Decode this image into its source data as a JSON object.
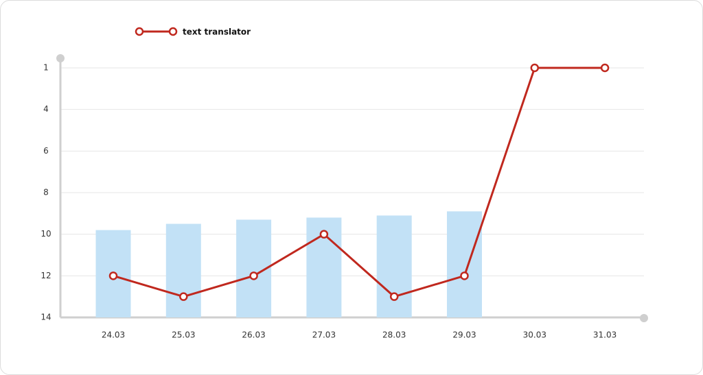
{
  "chart_data": {
    "type": "line",
    "categories": [
      "24.03",
      "25.03",
      "26.03",
      "27.03",
      "28.03",
      "29.03",
      "30.03",
      "31.03"
    ],
    "series": [
      {
        "type": "bar",
        "color": "#c2e1f6",
        "values": [
          9.8,
          9.5,
          9.3,
          9.2,
          9.1,
          8.9,
          null,
          null
        ]
      },
      {
        "type": "line",
        "name": "text translator",
        "color": "#c0281e",
        "values": [
          12,
          13,
          12,
          10,
          13,
          12,
          1,
          1
        ]
      }
    ],
    "ylim": [
      1,
      14
    ],
    "yticks": [
      1,
      4,
      6,
      8,
      10,
      12,
      14
    ],
    "y_reversed": true,
    "grid": true,
    "legend": "top-left"
  }
}
